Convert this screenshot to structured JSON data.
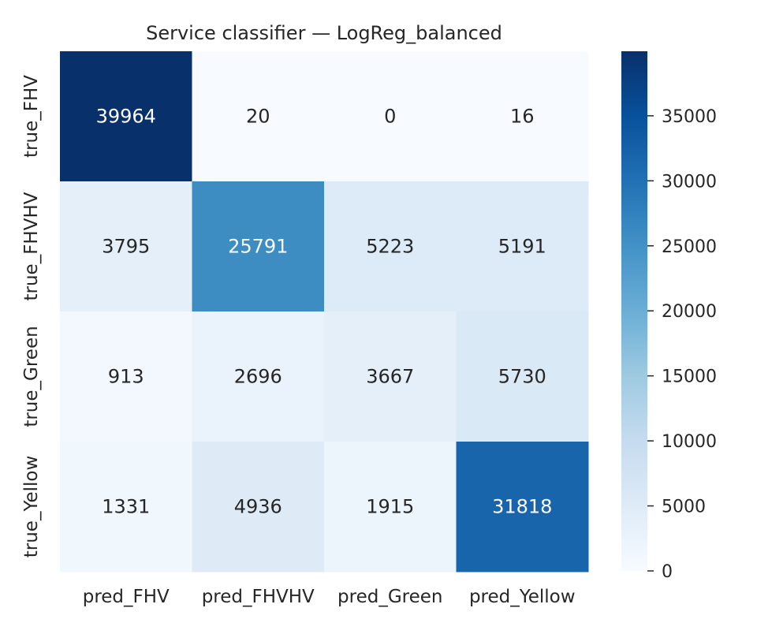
{
  "chart_data": {
    "type": "heatmap",
    "title": "Service classifier — LogReg_balanced",
    "row_labels": [
      "true_FHV",
      "true_FHVHV",
      "true_Green",
      "true_Yellow"
    ],
    "col_labels": [
      "pred_FHV",
      "pred_FHVHV",
      "pred_Green",
      "pred_Yellow"
    ],
    "values": [
      [
        39964,
        20,
        0,
        16
      ],
      [
        3795,
        25791,
        5223,
        5191
      ],
      [
        913,
        2696,
        3667,
        5730
      ],
      [
        1331,
        4936,
        1915,
        31818
      ]
    ],
    "colorbar": {
      "min": 0,
      "max": 39964,
      "ticks": [
        0,
        5000,
        10000,
        15000,
        20000,
        25000,
        30000,
        35000
      ]
    },
    "colormap": "Blues",
    "grid": false
  }
}
